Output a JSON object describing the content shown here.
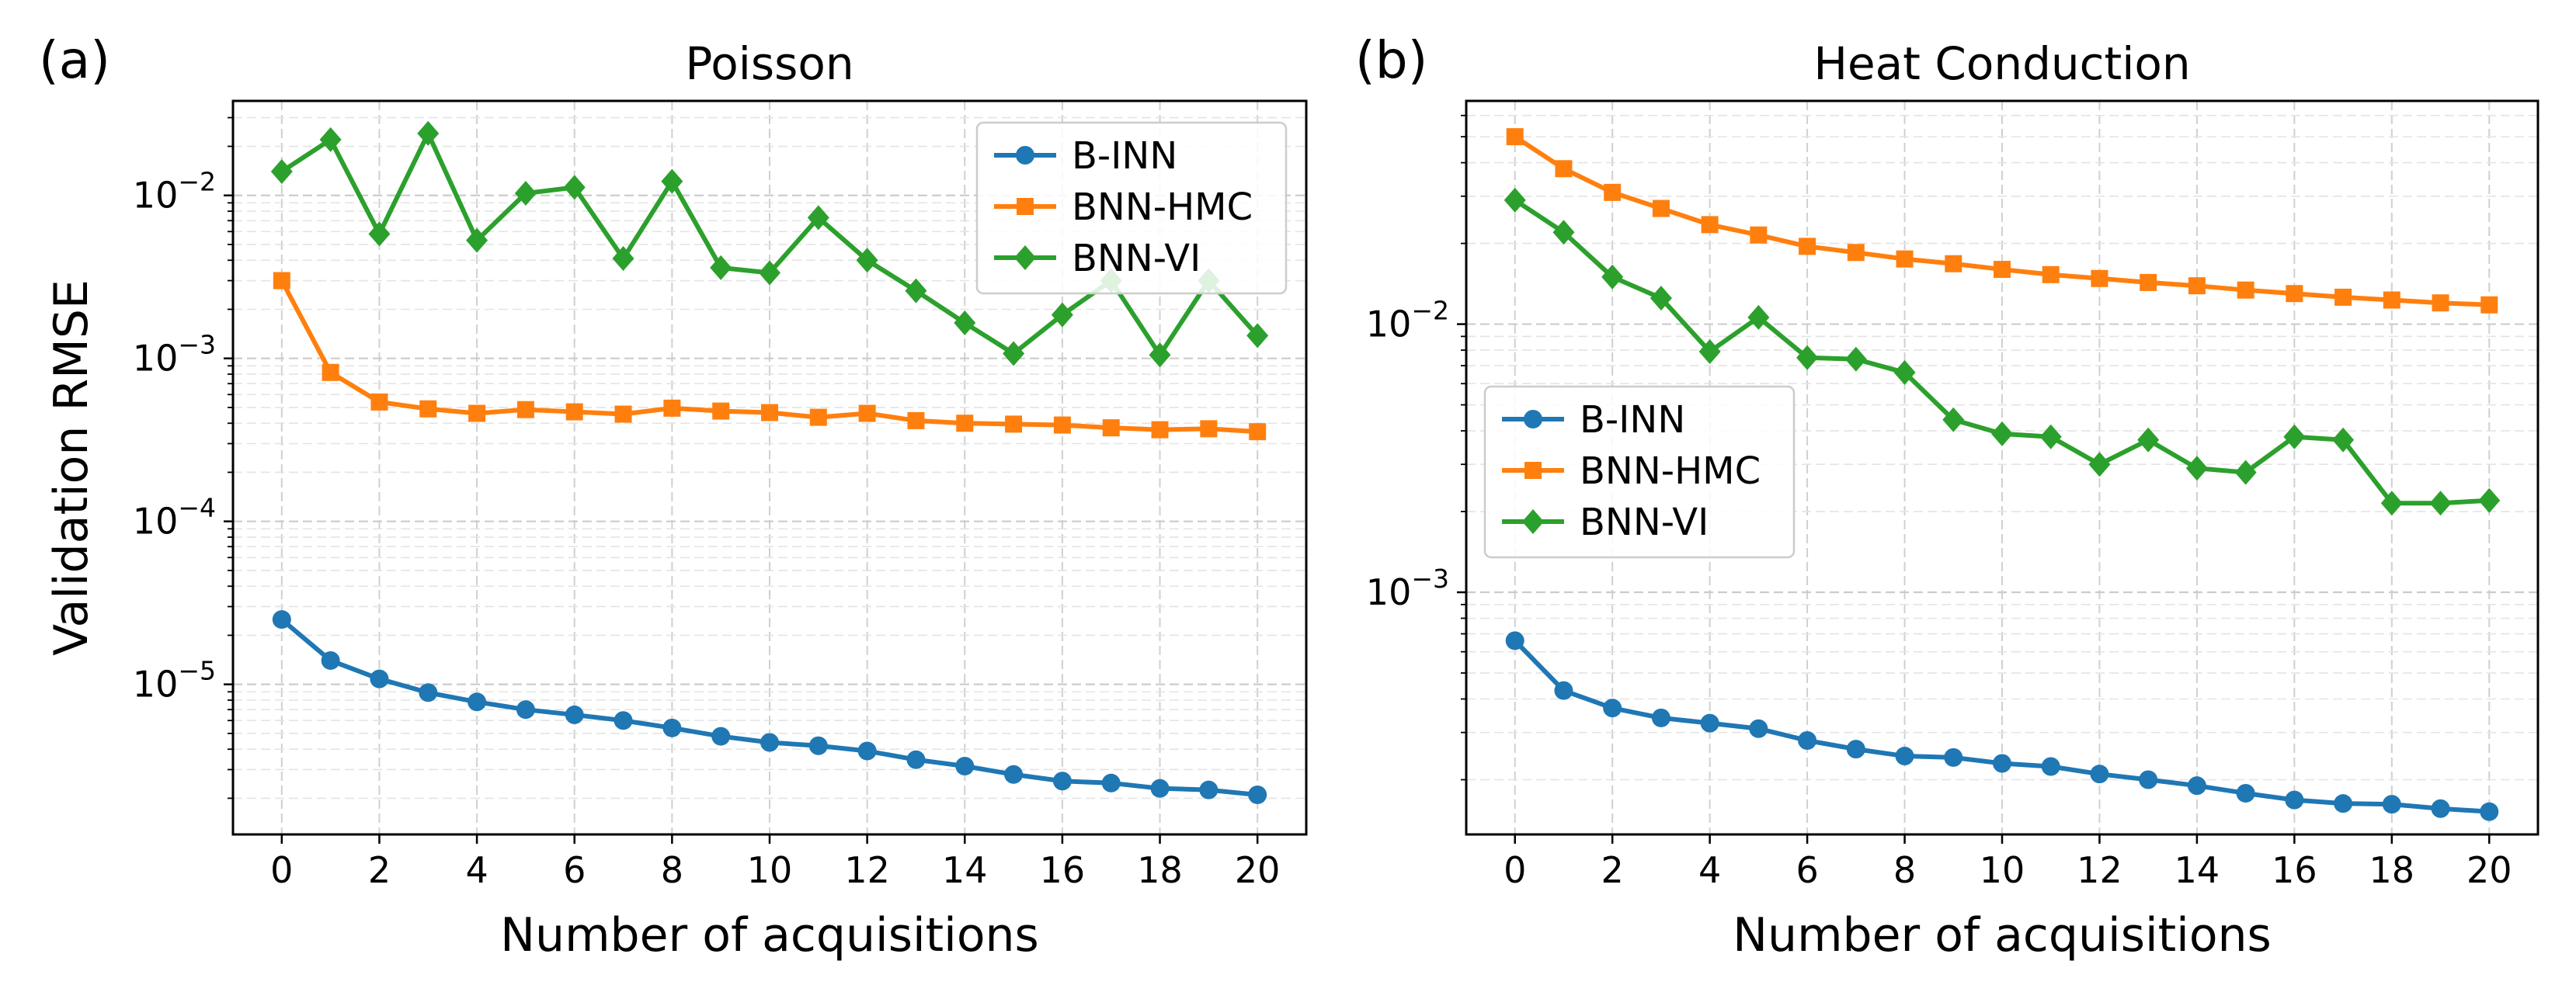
{
  "chart_data": [
    {
      "type": "line",
      "panel_label": "(a)",
      "title": "Poisson",
      "xlabel": "Number of acquisitions",
      "ylabel": "Validation RMSE",
      "yscale": "log",
      "xlim": [
        -1,
        21
      ],
      "ylim": [
        1.2e-06,
        0.038
      ],
      "grid": true,
      "legend_position": "top-right",
      "x": [
        0,
        1,
        2,
        3,
        4,
        5,
        6,
        7,
        8,
        9,
        10,
        11,
        12,
        13,
        14,
        15,
        16,
        17,
        18,
        19,
        20
      ],
      "x_ticks": [
        0,
        2,
        4,
        6,
        8,
        10,
        12,
        14,
        16,
        18,
        20
      ],
      "y_ticks": [
        {
          "base": "10",
          "exp": "−2",
          "value": 0.01
        },
        {
          "base": "10",
          "exp": "−3",
          "value": 0.001
        },
        {
          "base": "10",
          "exp": "−4",
          "value": 0.0001
        },
        {
          "base": "10",
          "exp": "−5",
          "value": 1e-05
        }
      ],
      "series": [
        {
          "name": "B-INN",
          "color": "#1f77b4",
          "marker": "circle",
          "values": [
            2.5e-05,
            1.4e-05,
            1.08e-05,
            8.9e-06,
            7.8e-06,
            7e-06,
            6.5e-06,
            6e-06,
            5.4e-06,
            4.8e-06,
            4.4e-06,
            4.2e-06,
            3.9e-06,
            3.45e-06,
            3.15e-06,
            2.8e-06,
            2.55e-06,
            2.48e-06,
            2.3e-06,
            2.25e-06,
            2.1e-06
          ]
        },
        {
          "name": "BNN-HMC",
          "color": "#ff7f0e",
          "marker": "square",
          "values": [
            0.003,
            0.00082,
            0.00054,
            0.00049,
            0.00046,
            0.000485,
            0.00047,
            0.000455,
            0.000495,
            0.000475,
            0.000465,
            0.000435,
            0.00046,
            0.000415,
            0.0004,
            0.000395,
            0.00039,
            0.000375,
            0.000365,
            0.00037,
            0.000355
          ]
        },
        {
          "name": "BNN-VI",
          "color": "#2ca02c",
          "marker": "diamond",
          "values": [
            0.014,
            0.022,
            0.0058,
            0.024,
            0.0053,
            0.0103,
            0.0112,
            0.0041,
            0.0122,
            0.0036,
            0.00335,
            0.0073,
            0.004,
            0.0026,
            0.00165,
            0.00107,
            0.00185,
            0.003,
            0.00105,
            0.003,
            0.00138
          ]
        }
      ]
    },
    {
      "type": "line",
      "panel_label": "(b)",
      "title": "Heat Conduction",
      "xlabel": "Number of acquisitions",
      "ylabel": "",
      "yscale": "log",
      "xlim": [
        -1,
        21
      ],
      "ylim": [
        0.000125,
        0.068
      ],
      "grid": true,
      "legend_position": "center-left",
      "x": [
        0,
        1,
        2,
        3,
        4,
        5,
        6,
        7,
        8,
        9,
        10,
        11,
        12,
        13,
        14,
        15,
        16,
        17,
        18,
        19,
        20
      ],
      "x_ticks": [
        0,
        2,
        4,
        6,
        8,
        10,
        12,
        14,
        16,
        18,
        20
      ],
      "y_ticks": [
        {
          "base": "10",
          "exp": "−2",
          "value": 0.01
        },
        {
          "base": "10",
          "exp": "−3",
          "value": 0.001
        }
      ],
      "series": [
        {
          "name": "B-INN",
          "color": "#1f77b4",
          "marker": "circle",
          "values": [
            0.00066,
            0.00043,
            0.00037,
            0.00034,
            0.000325,
            0.00031,
            0.00028,
            0.00026,
            0.000245,
            0.000242,
            0.00023,
            0.000224,
            0.00021,
            0.0002,
            0.00019,
            0.000178,
            0.000168,
            0.000163,
            0.000162,
            0.000156,
            0.000152
          ]
        },
        {
          "name": "BNN-HMC",
          "color": "#ff7f0e",
          "marker": "square",
          "values": [
            0.05,
            0.038,
            0.031,
            0.027,
            0.0235,
            0.0215,
            0.0195,
            0.0185,
            0.0175,
            0.0168,
            0.016,
            0.0153,
            0.0148,
            0.0143,
            0.0139,
            0.0134,
            0.013,
            0.0126,
            0.0123,
            0.012,
            0.0118
          ]
        },
        {
          "name": "BNN-VI",
          "color": "#2ca02c",
          "marker": "diamond",
          "values": [
            0.029,
            0.022,
            0.015,
            0.0125,
            0.0079,
            0.0106,
            0.0075,
            0.0074,
            0.0066,
            0.0044,
            0.0039,
            0.0038,
            0.003,
            0.0037,
            0.0029,
            0.0028,
            0.0038,
            0.0037,
            0.00215,
            0.00215,
            0.0022
          ]
        }
      ]
    }
  ]
}
